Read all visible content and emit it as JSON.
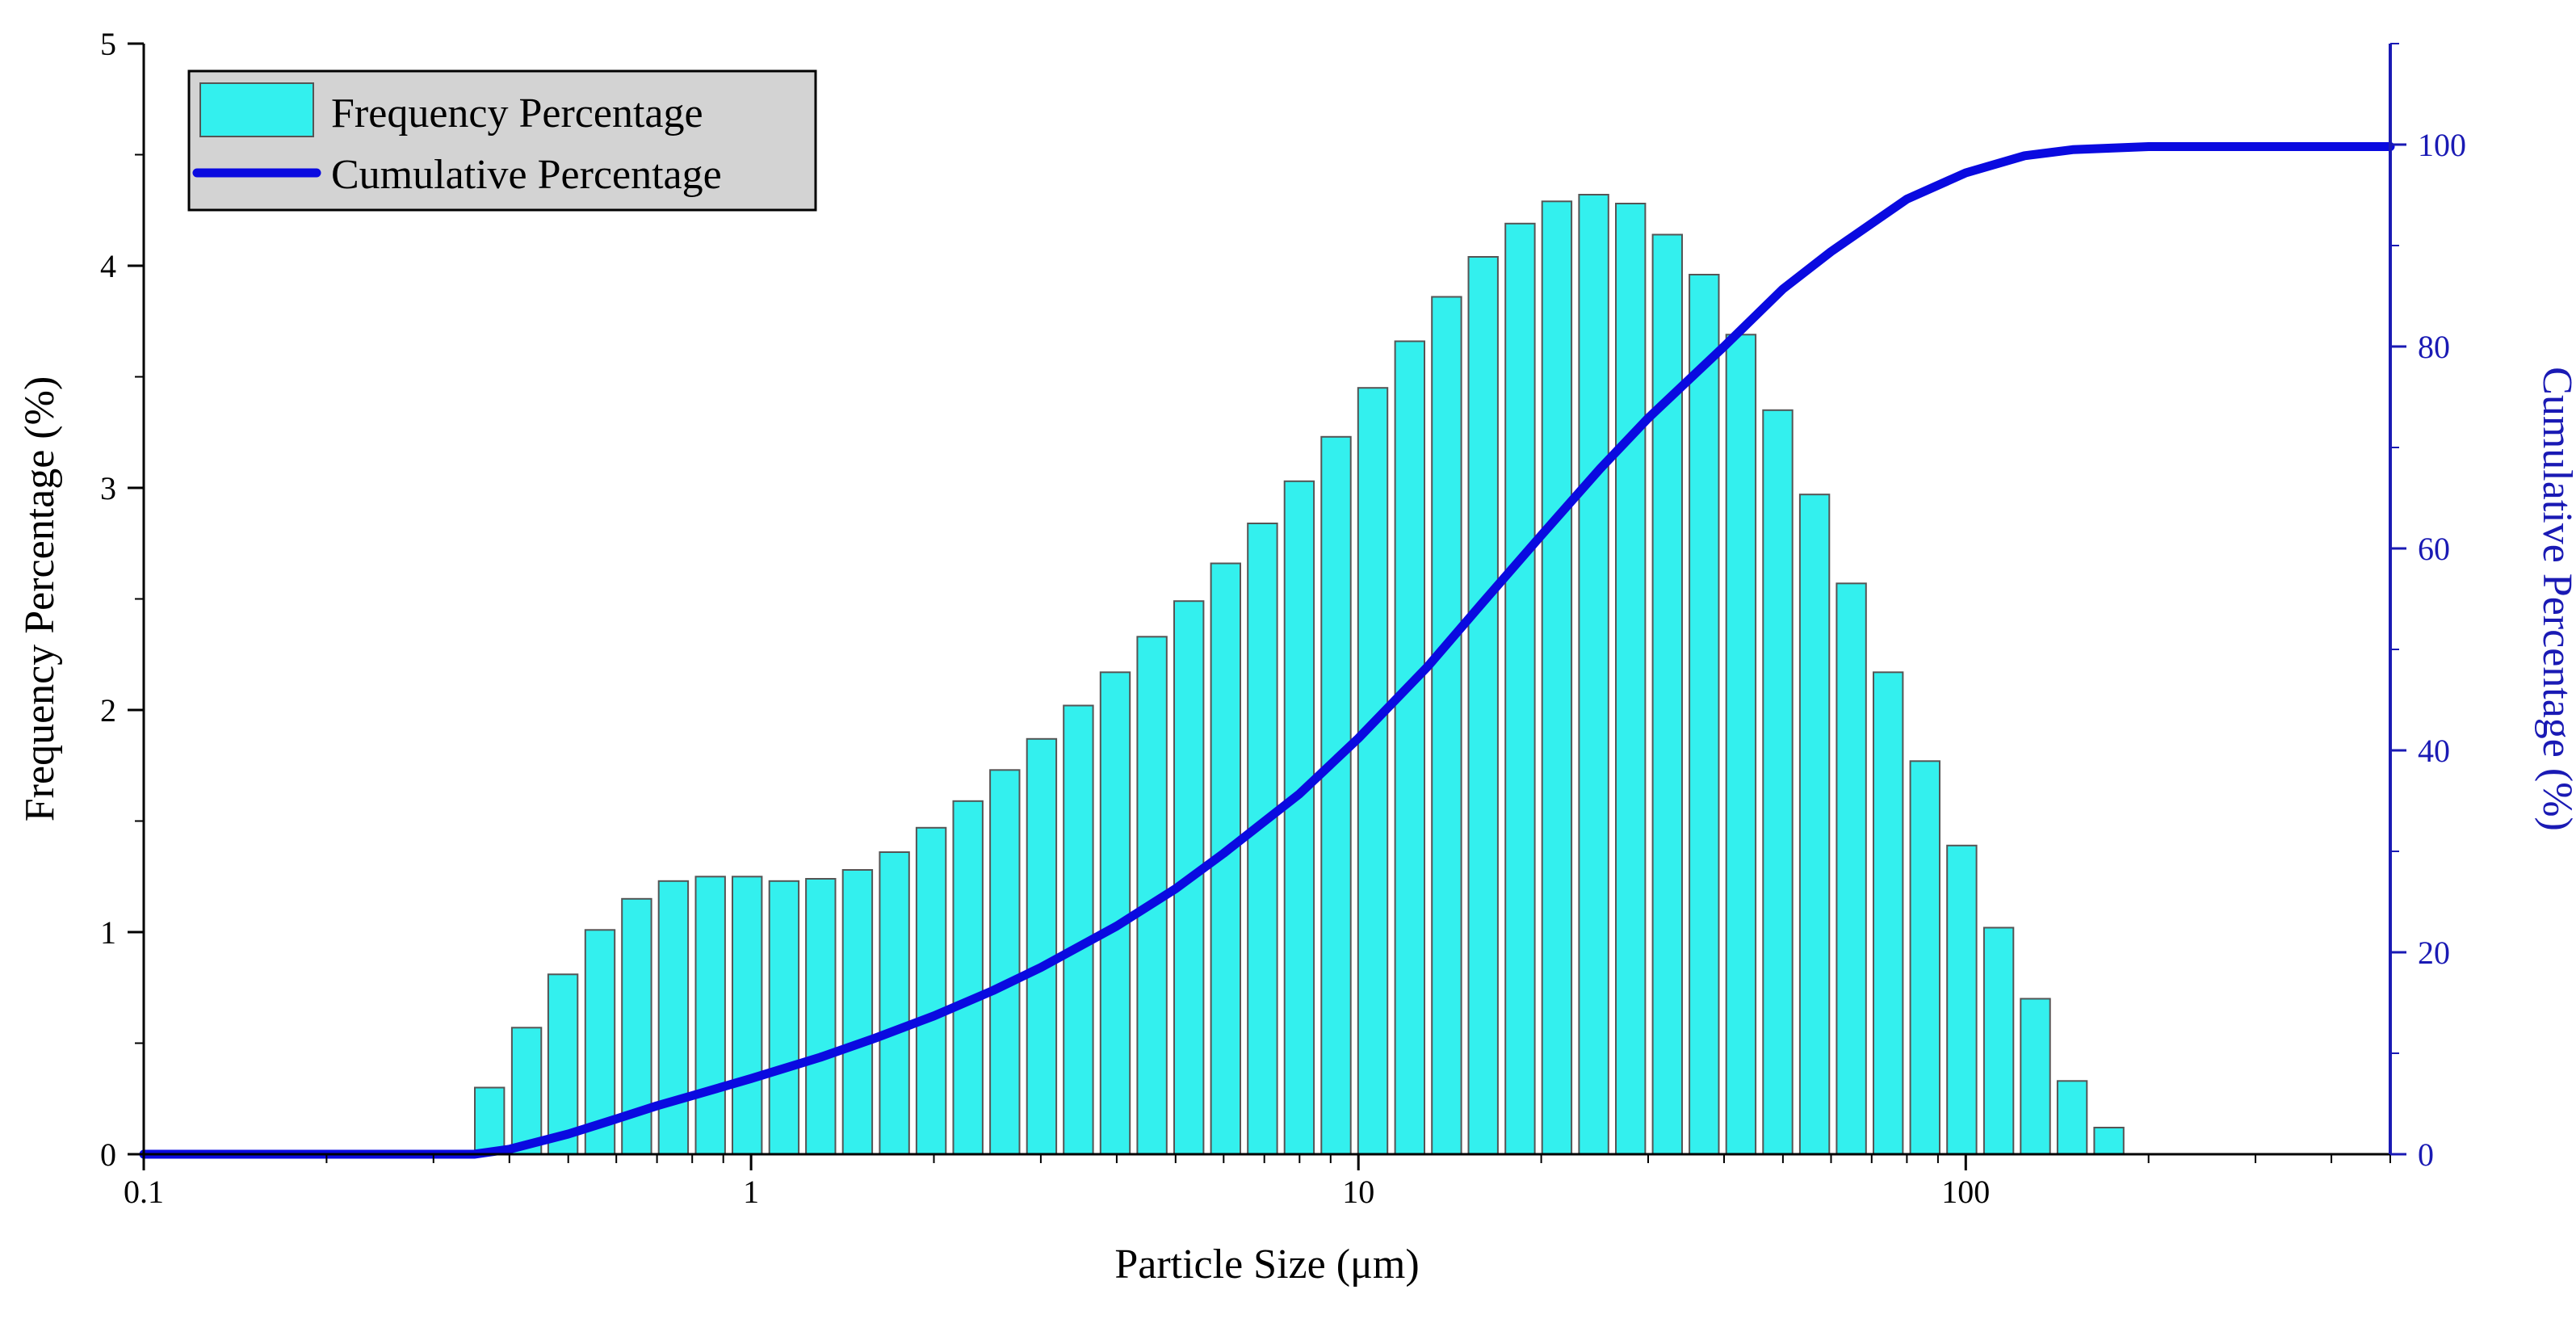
{
  "chart_data": {
    "type": "bar+line",
    "xscale": "log",
    "xlabel": "Particle Size (μm)",
    "ylabel": "Frequency Percentage (%)",
    "y2label": "Cumulative Percentage (%)",
    "xlim": [
      0.1,
      500
    ],
    "ylim": [
      0,
      5
    ],
    "y2lim": [
      0,
      110
    ],
    "x_ticks": [
      0.1,
      1,
      10,
      100
    ],
    "x_tick_labels": [
      "0.1",
      "1",
      "10",
      "100"
    ],
    "y_ticks": [
      0,
      1,
      2,
      3,
      4,
      5
    ],
    "y_tick_labels": [
      "0",
      "1",
      "2",
      "3",
      "4",
      "5"
    ],
    "y2_ticks": [
      0,
      20,
      40,
      60,
      80,
      100
    ],
    "y2_tick_labels": [
      "0",
      "20",
      "40",
      "60",
      "80",
      "100"
    ],
    "legend_position": "top-left",
    "colors": {
      "bar_fill": "#33f0ee",
      "bar_edge": "#555555",
      "line": "#0a0ae0",
      "right_axis": "#1a1ab4",
      "legend_bg": "#d3d3d3"
    },
    "series": [
      {
        "name": "Frequency Percentage",
        "type": "bar",
        "axis": "left",
        "x": [
          0.371,
          0.427,
          0.49,
          0.564,
          0.648,
          0.745,
          0.857,
          0.985,
          1.133,
          1.302,
          1.497,
          1.722,
          1.979,
          2.276,
          2.617,
          3.009,
          3.459,
          3.977,
          4.573,
          5.258,
          6.045,
          6.95,
          7.991,
          9.188,
          10.56,
          12.15,
          13.97,
          16.05,
          18.46,
          21.22,
          24.4,
          28.06,
          32.26,
          37.09,
          42.64,
          49.03,
          56.37,
          64.81,
          74.52,
          85.68,
          98.51,
          113.3,
          130.2,
          149.7,
          172.1
        ],
        "values": [
          0.3,
          0.57,
          0.81,
          1.01,
          1.15,
          1.23,
          1.25,
          1.25,
          1.23,
          1.24,
          1.28,
          1.36,
          1.47,
          1.59,
          1.73,
          1.87,
          2.02,
          2.17,
          2.33,
          2.49,
          2.66,
          2.84,
          3.03,
          3.23,
          3.45,
          3.66,
          3.86,
          4.04,
          4.19,
          4.29,
          4.32,
          4.28,
          4.14,
          3.96,
          3.69,
          3.35,
          2.97,
          2.57,
          2.17,
          1.77,
          1.39,
          1.02,
          0.7,
          0.33,
          0.12
        ]
      },
      {
        "name": "Cumulative Percentage",
        "type": "line",
        "axis": "right",
        "x": [
          0.1,
          0.35,
          0.4,
          0.5,
          0.6,
          0.7,
          0.8,
          1.0,
          1.3,
          1.6,
          2.0,
          2.5,
          3.0,
          4.0,
          5.0,
          6.0,
          8.0,
          10.0,
          13.0,
          16.0,
          20.0,
          25.0,
          30.0,
          40.0,
          50.0,
          60.0,
          80.0,
          100.0,
          125.0,
          150.0,
          200.0,
          500.0
        ],
        "values": [
          0,
          0,
          0.5,
          2,
          3.5,
          4.8,
          5.8,
          7.5,
          9.6,
          11.5,
          13.7,
          16.2,
          18.5,
          22.6,
          26.3,
          29.8,
          35.7,
          41.2,
          48.3,
          54.6,
          61.3,
          67.9,
          72.9,
          80.0,
          85.7,
          89.4,
          94.6,
          97.2,
          98.9,
          99.5,
          99.8,
          99.8
        ]
      }
    ]
  }
}
